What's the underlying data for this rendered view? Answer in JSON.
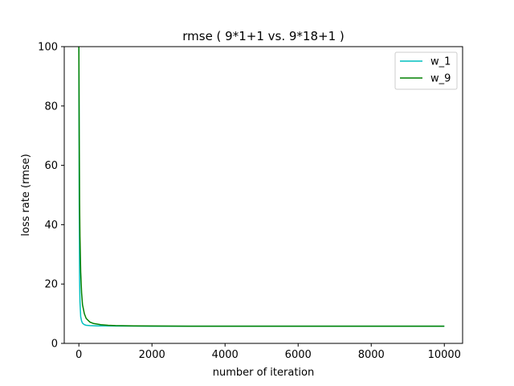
{
  "chart_data": {
    "type": "line",
    "title": "rmse ( 9*1+1 vs. 9*18+1 )",
    "xlabel": "number of iteration",
    "ylabel": "loss rate (rmse)",
    "xlim": [
      -400,
      10500
    ],
    "ylim": [
      0,
      100
    ],
    "xticks": [
      0,
      2000,
      4000,
      6000,
      8000,
      10000
    ],
    "yticks": [
      0,
      20,
      40,
      60,
      80,
      100
    ],
    "grid": false,
    "legend_position": "top-right",
    "series": [
      {
        "name": "w_1",
        "color": "#00bfbf",
        "x": [
          0,
          5,
          10,
          20,
          30,
          50,
          75,
          100,
          150,
          200,
          300,
          500,
          1000,
          2000,
          5000,
          10000
        ],
        "y": [
          100,
          70,
          45,
          22,
          14,
          9,
          7.5,
          6.8,
          6.3,
          6.1,
          6.0,
          5.9,
          5.85,
          5.8,
          5.8,
          5.8
        ]
      },
      {
        "name": "w_9",
        "color": "#008000",
        "x": [
          0,
          10,
          20,
          30,
          50,
          75,
          100,
          150,
          200,
          300,
          400,
          600,
          800,
          1000,
          1500,
          2000,
          3000,
          5000,
          10000
        ],
        "y": [
          100,
          70,
          48,
          36,
          24,
          17,
          13,
          10,
          8.4,
          7.2,
          6.7,
          6.3,
          6.1,
          6.0,
          5.9,
          5.85,
          5.8,
          5.8,
          5.8
        ]
      }
    ]
  }
}
